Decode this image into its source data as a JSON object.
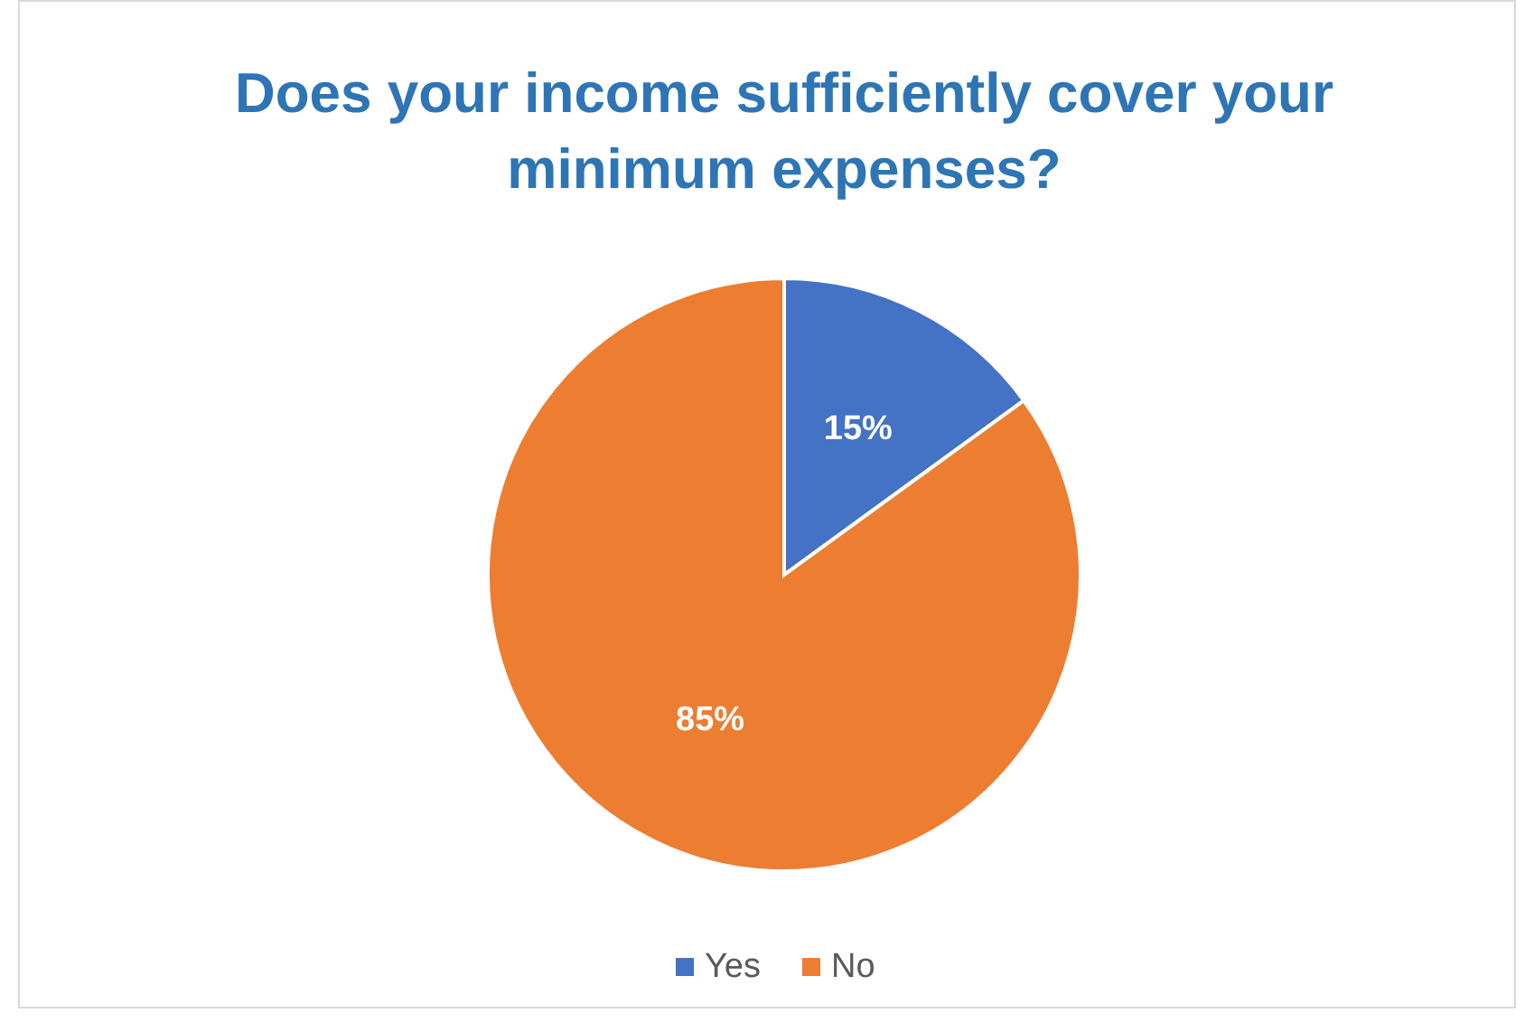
{
  "chart_data": {
    "type": "pie",
    "title": "Does your income sufficiently cover your minimum expenses?",
    "categories": [
      "Yes",
      "No"
    ],
    "values": [
      15,
      85
    ],
    "colors": [
      "#4472c4",
      "#ed7d31"
    ],
    "value_labels": [
      "15%",
      "85%"
    ],
    "legend": "bottom"
  }
}
